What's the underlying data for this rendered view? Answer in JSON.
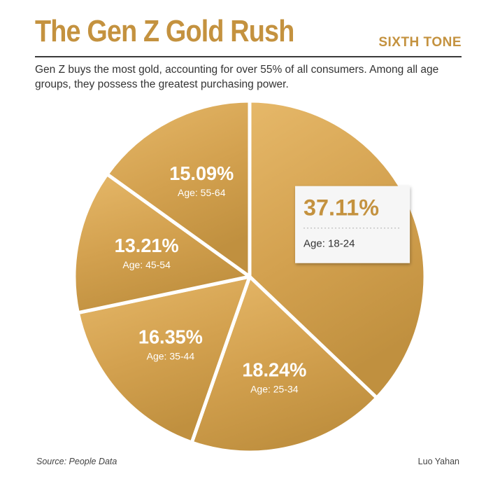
{
  "header": {
    "title": "The Gen Z Gold Rush",
    "brand": "SIXTH TONE",
    "subtitle": "Gen Z buys the most gold, accounting for over 55% of all consumers. Among all age groups, they possess the greatest purchasing power."
  },
  "footer": {
    "source": "Source: People Data",
    "credit": "Luo Yahan"
  },
  "colors": {
    "accent": "#c4923f",
    "gold_light": "#e2b565",
    "gold_dark": "#b98a3c",
    "label_text": "#ffffff",
    "callout_text": "#c4923f"
  },
  "chart_data": {
    "type": "pie",
    "title": "The Gen Z Gold Rush",
    "slices": [
      {
        "percent_label": "37.11%",
        "value": 37.11,
        "age_label": "Age: 18-24"
      },
      {
        "percent_label": "18.24%",
        "value": 18.24,
        "age_label": "Age: 25-34"
      },
      {
        "percent_label": "16.35%",
        "value": 16.35,
        "age_label": "Age: 35-44"
      },
      {
        "percent_label": "13.21%",
        "value": 13.21,
        "age_label": "Age: 45-54"
      },
      {
        "percent_label": "15.09%",
        "value": 15.09,
        "age_label": "Age: 55-64"
      }
    ],
    "highlighted_slice": 0
  }
}
